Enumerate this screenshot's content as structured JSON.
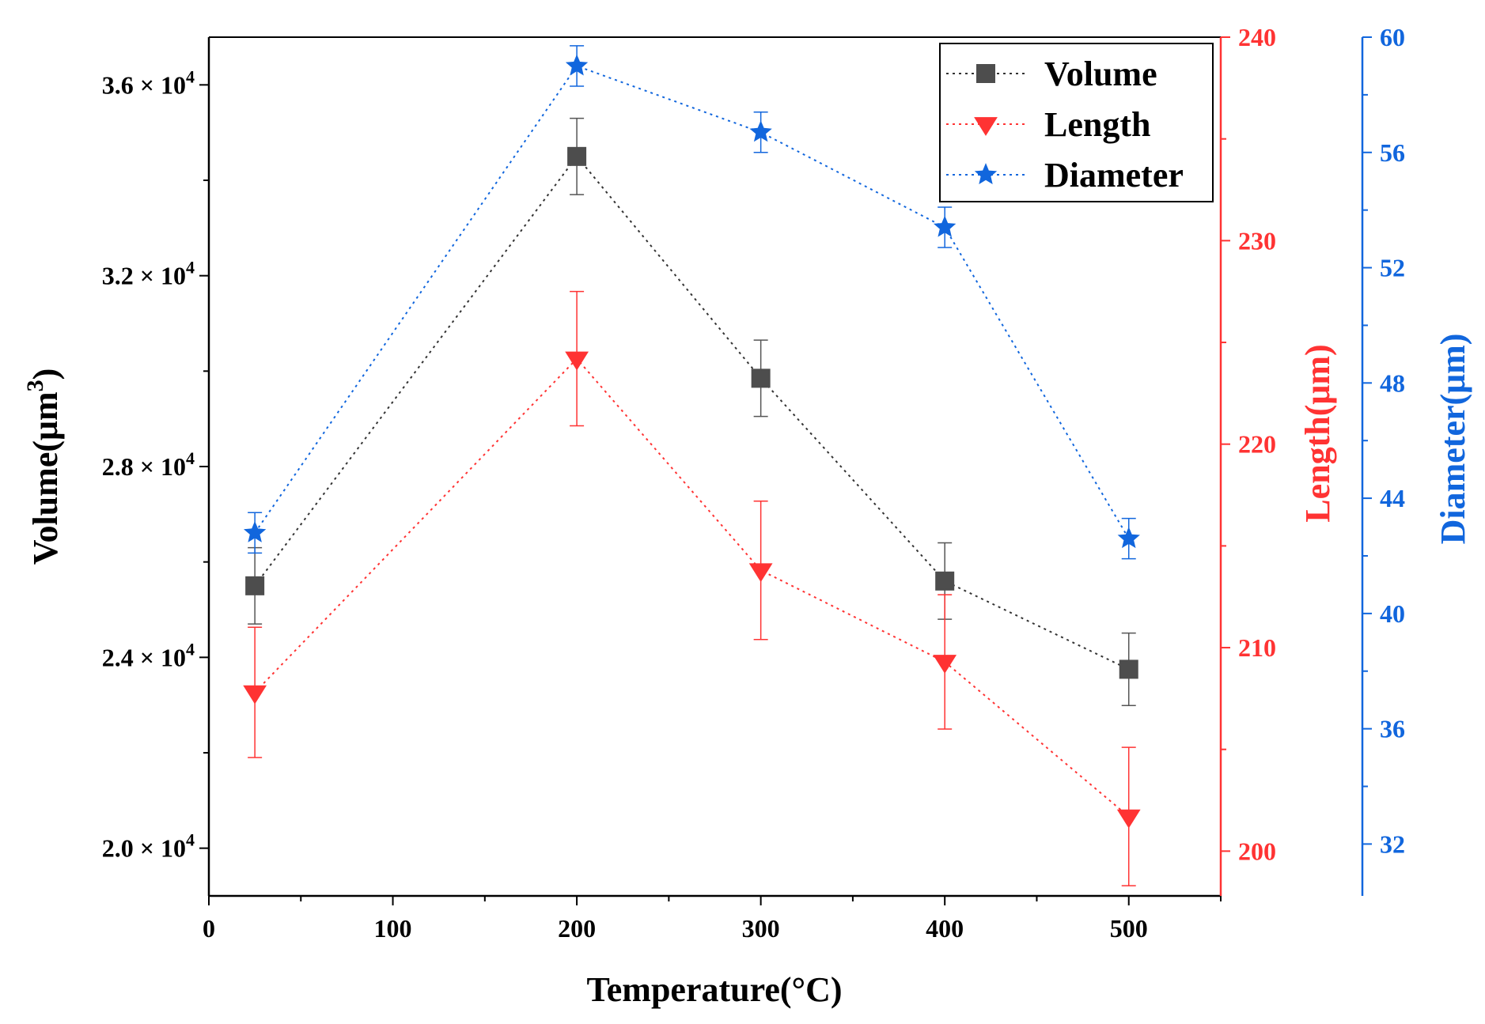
{
  "chart_data": {
    "type": "line",
    "title": "",
    "xlabel": "Temperature(°C)",
    "x_range": [
      0,
      550
    ],
    "x_ticks": [
      0,
      100,
      200,
      300,
      400,
      500
    ],
    "x": [
      25,
      200,
      300,
      400,
      500
    ],
    "grid": false,
    "legend_position": "top-right",
    "axes": {
      "volume": {
        "label": "Volume(μm³)",
        "label_main": "Volume(μm",
        "label_sup": "3",
        "label_close": ")",
        "range": [
          19000,
          37000
        ],
        "ticks": [
          20000,
          24000,
          28000,
          32000,
          36000
        ],
        "tick_labels": [
          {
            "mantissa": "2.0",
            "times": "×",
            "base": "10",
            "exp": "4"
          },
          {
            "mantissa": "2.4",
            "times": "×",
            "base": "10",
            "exp": "4"
          },
          {
            "mantissa": "2.8",
            "times": "×",
            "base": "10",
            "exp": "4"
          },
          {
            "mantissa": "3.2",
            "times": "×",
            "base": "10",
            "exp": "4"
          },
          {
            "mantissa": "3.6",
            "times": "×",
            "base": "10",
            "exp": "4"
          }
        ],
        "color": "#000000"
      },
      "length": {
        "label": "Length(μm)",
        "range": [
          197.8,
          240
        ],
        "ticks": [
          200,
          210,
          220,
          230,
          240
        ],
        "tick_labels": [
          "200",
          "210",
          "220",
          "230",
          "240"
        ],
        "color": "#ff3333"
      },
      "diameter": {
        "label": "Diameter(μm)",
        "range": [
          30.2,
          60
        ],
        "ticks": [
          32,
          36,
          40,
          44,
          48,
          52,
          56,
          60
        ],
        "tick_labels": [
          "32",
          "36",
          "40",
          "44",
          "48",
          "52",
          "56",
          "60"
        ],
        "color": "#1166dd"
      }
    },
    "series": [
      {
        "name": "Volume",
        "axis": "volume",
        "marker": "square",
        "color": "#4d4d4d",
        "line_color": "#333333",
        "values": [
          25500,
          34500,
          29850,
          25600,
          23750
        ],
        "errors": [
          800,
          800,
          800,
          800,
          760
        ]
      },
      {
        "name": "Length",
        "axis": "length",
        "marker": "triangle-down",
        "color": "#ff3333",
        "line_color": "#ff3333",
        "values": [
          207.8,
          224.2,
          213.8,
          209.3,
          201.7
        ],
        "errors": [
          3.2,
          3.3,
          3.4,
          3.3,
          3.4
        ]
      },
      {
        "name": "Diameter",
        "axis": "diameter",
        "marker": "star",
        "color": "#1166dd",
        "line_color": "#1166dd",
        "values": [
          42.8,
          59.0,
          56.7,
          53.4,
          42.6
        ],
        "errors": [
          0.7,
          0.7,
          0.7,
          0.7,
          0.7
        ]
      }
    ]
  }
}
